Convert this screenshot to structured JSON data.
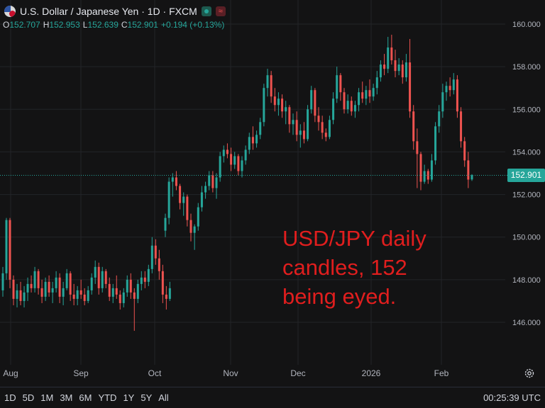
{
  "header": {
    "symbol_title": "U.S. Dollar / Japanese Yen · 1D · FXCM",
    "flag_icon": "usd-jpy-flag-icon",
    "status_icon": "market-open-icon",
    "wave_icon": "wave-icon",
    "wave_glyph": "≈"
  },
  "ohlc": {
    "o_label": "O",
    "o_value": "152.707",
    "h_label": "H",
    "h_value": "152.953",
    "l_label": "L",
    "l_value": "152.639",
    "c_label": "C",
    "c_value": "152.901",
    "change": "+0.194 (+0.13%)"
  },
  "annotation": "USD/JPY daily\ncandles, 152\nbeing eyed.",
  "price_tag": "152.901",
  "bottom_bar": {
    "timeframes": [
      "1D",
      "5D",
      "1M",
      "3M",
      "6M",
      "YTD",
      "1Y",
      "5Y",
      "All"
    ],
    "clock": "00:25:39 UTC",
    "settings_icon": "gear-icon"
  },
  "colors": {
    "up": "#26a69a",
    "down": "#ef5350",
    "annotation": "#e01e1e",
    "background": "#131314"
  },
  "chart_data": {
    "type": "candlestick",
    "title": "U.S. Dollar / Japanese Yen · 1D · FXCM",
    "x_ticks": [
      "Aug",
      "Sep",
      "Oct",
      "Nov",
      "Dec",
      "2026",
      "Feb"
    ],
    "y_ticks": [
      "160.000",
      "158.000",
      "156.000",
      "154.000",
      "152.000",
      "150.000",
      "148.000",
      "146.000"
    ],
    "ylim": [
      144.8,
      160.7
    ],
    "grid": true,
    "last_price": 152.901,
    "candles": [
      [
        147.5,
        148.6,
        147.2,
        148.3
      ],
      [
        148.3,
        150.9,
        148.0,
        150.8
      ],
      [
        150.8,
        150.9,
        147.6,
        148.0
      ],
      [
        148.0,
        148.2,
        146.8,
        147.1
      ],
      [
        147.1,
        147.8,
        146.7,
        147.5
      ],
      [
        147.5,
        147.9,
        146.8,
        147.0
      ],
      [
        147.0,
        147.7,
        146.7,
        147.4
      ],
      [
        147.4,
        148.1,
        147.0,
        147.8
      ],
      [
        147.8,
        148.2,
        147.4,
        147.6
      ],
      [
        147.6,
        148.6,
        147.4,
        148.4
      ],
      [
        148.4,
        148.5,
        147.3,
        147.6
      ],
      [
        147.6,
        148.0,
        146.9,
        147.2
      ],
      [
        147.2,
        148.1,
        147.0,
        147.9
      ],
      [
        147.9,
        148.2,
        147.2,
        147.4
      ],
      [
        147.4,
        147.9,
        146.9,
        147.6
      ],
      [
        147.6,
        148.4,
        147.4,
        148.1
      ],
      [
        148.1,
        148.3,
        146.9,
        147.2
      ],
      [
        147.2,
        147.9,
        146.8,
        147.6
      ],
      [
        147.6,
        148.5,
        147.5,
        148.3
      ],
      [
        148.3,
        148.4,
        147.0,
        147.3
      ],
      [
        147.3,
        147.8,
        146.8,
        147.1
      ],
      [
        147.1,
        147.7,
        146.8,
        147.5
      ],
      [
        147.5,
        148.0,
        147.1,
        147.3
      ],
      [
        147.3,
        147.6,
        146.8,
        147.0
      ],
      [
        147.0,
        147.7,
        146.9,
        147.5
      ],
      [
        147.5,
        148.3,
        147.3,
        148.1
      ],
      [
        148.1,
        148.9,
        147.8,
        148.6
      ],
      [
        148.6,
        148.8,
        147.3,
        147.6
      ],
      [
        147.6,
        148.6,
        147.4,
        148.4
      ],
      [
        148.4,
        148.5,
        147.6,
        147.8
      ],
      [
        147.8,
        148.1,
        147.0,
        147.2
      ],
      [
        147.2,
        147.8,
        146.9,
        147.6
      ],
      [
        147.6,
        148.2,
        147.1,
        147.3
      ],
      [
        147.3,
        147.5,
        146.6,
        146.9
      ],
      [
        146.9,
        147.6,
        146.7,
        147.4
      ],
      [
        147.4,
        148.2,
        147.2,
        148.0
      ],
      [
        148.0,
        148.3,
        147.1,
        147.4
      ],
      [
        147.4,
        147.6,
        145.6,
        147.1
      ],
      [
        147.1,
        148.0,
        146.9,
        147.8
      ],
      [
        147.8,
        148.4,
        147.5,
        148.1
      ],
      [
        148.1,
        148.4,
        147.6,
        147.9
      ],
      [
        147.9,
        148.7,
        147.7,
        148.5
      ],
      [
        148.5,
        150.0,
        148.3,
        149.6
      ],
      [
        149.6,
        149.9,
        148.7,
        149.0
      ],
      [
        149.0,
        149.4,
        148.0,
        148.4
      ],
      [
        148.4,
        148.7,
        146.9,
        147.3
      ],
      [
        147.3,
        147.7,
        146.6,
        147.1
      ],
      [
        147.1,
        147.9,
        147.0,
        147.6
      ],
      [
        150.3,
        151.1,
        150.0,
        150.9
      ],
      [
        150.9,
        152.8,
        150.6,
        152.6
      ],
      [
        152.6,
        153.0,
        151.9,
        152.8
      ],
      [
        152.8,
        153.1,
        152.2,
        152.4
      ],
      [
        152.4,
        152.5,
        151.3,
        151.6
      ],
      [
        151.6,
        152.1,
        151.0,
        151.9
      ],
      [
        151.9,
        152.0,
        150.5,
        150.8
      ],
      [
        150.8,
        151.1,
        149.8,
        150.2
      ],
      [
        150.2,
        150.6,
        149.4,
        150.5
      ],
      [
        150.5,
        151.6,
        150.3,
        151.4
      ],
      [
        151.4,
        152.4,
        151.2,
        152.1
      ],
      [
        152.1,
        152.6,
        151.8,
        152.4
      ],
      [
        152.4,
        153.1,
        152.2,
        152.9
      ],
      [
        152.9,
        153.1,
        152.1,
        152.3
      ],
      [
        152.3,
        153.0,
        151.8,
        152.8
      ],
      [
        152.8,
        154.0,
        152.6,
        153.8
      ],
      [
        153.8,
        154.3,
        153.5,
        154.1
      ],
      [
        154.1,
        154.4,
        153.7,
        153.9
      ],
      [
        153.9,
        154.2,
        153.1,
        153.4
      ],
      [
        153.4,
        154.0,
        153.2,
        153.8
      ],
      [
        153.8,
        153.9,
        152.9,
        153.1
      ],
      [
        153.1,
        153.8,
        152.8,
        153.6
      ],
      [
        153.6,
        154.3,
        153.4,
        154.1
      ],
      [
        154.1,
        154.9,
        153.9,
        154.7
      ],
      [
        154.7,
        155.2,
        154.1,
        154.4
      ],
      [
        154.4,
        155.0,
        154.2,
        154.8
      ],
      [
        154.8,
        155.6,
        154.6,
        155.4
      ],
      [
        155.4,
        157.2,
        155.2,
        157.0
      ],
      [
        157.0,
        157.9,
        156.6,
        157.6
      ],
      [
        157.6,
        157.8,
        156.3,
        156.6
      ],
      [
        156.6,
        157.0,
        155.9,
        156.2
      ],
      [
        156.2,
        156.8,
        155.7,
        156.5
      ],
      [
        156.5,
        156.7,
        155.6,
        155.9
      ],
      [
        155.9,
        156.4,
        155.3,
        156.1
      ],
      [
        156.1,
        156.2,
        154.9,
        155.3
      ],
      [
        155.3,
        155.8,
        154.8,
        155.5
      ],
      [
        155.5,
        155.9,
        154.5,
        154.8
      ],
      [
        154.8,
        155.3,
        154.2,
        155.0
      ],
      [
        155.0,
        155.4,
        154.4,
        154.6
      ],
      [
        154.6,
        156.2,
        154.5,
        156.0
      ],
      [
        156.0,
        157.1,
        155.8,
        156.9
      ],
      [
        156.9,
        157.0,
        155.4,
        155.7
      ],
      [
        155.7,
        156.1,
        155.0,
        155.4
      ],
      [
        155.4,
        155.7,
        154.6,
        154.9
      ],
      [
        154.9,
        155.1,
        154.5,
        154.7
      ],
      [
        154.7,
        155.7,
        154.6,
        155.5
      ],
      [
        155.5,
        156.8,
        155.3,
        156.5
      ],
      [
        156.5,
        158.0,
        156.3,
        157.6
      ],
      [
        157.6,
        157.7,
        156.4,
        156.8
      ],
      [
        156.8,
        157.0,
        155.8,
        156.0
      ],
      [
        156.0,
        156.7,
        155.8,
        156.4
      ],
      [
        156.4,
        156.6,
        155.7,
        155.9
      ],
      [
        155.9,
        156.4,
        155.6,
        156.2
      ],
      [
        156.2,
        157.0,
        155.9,
        156.8
      ],
      [
        156.8,
        157.3,
        156.3,
        156.5
      ],
      [
        156.5,
        157.1,
        156.2,
        156.9
      ],
      [
        156.9,
        157.4,
        156.3,
        156.6
      ],
      [
        156.6,
        157.2,
        156.4,
        157.0
      ],
      [
        157.0,
        157.8,
        156.7,
        157.5
      ],
      [
        157.5,
        158.3,
        157.3,
        158.1
      ],
      [
        158.1,
        158.6,
        157.6,
        157.9
      ],
      [
        157.9,
        159.4,
        157.7,
        158.9
      ],
      [
        158.9,
        159.5,
        158.1,
        158.3
      ],
      [
        158.3,
        158.8,
        157.5,
        157.8
      ],
      [
        157.8,
        158.4,
        157.6,
        158.1
      ],
      [
        158.1,
        158.3,
        157.2,
        157.5
      ],
      [
        157.5,
        158.6,
        157.3,
        158.2
      ],
      [
        158.2,
        159.3,
        155.6,
        155.9
      ],
      [
        155.9,
        156.2,
        154.1,
        154.5
      ],
      [
        154.5,
        155.1,
        152.3,
        153.9
      ],
      [
        153.9,
        154.0,
        152.2,
        152.6
      ],
      [
        152.6,
        153.4,
        152.5,
        153.1
      ],
      [
        153.1,
        153.2,
        152.5,
        152.7
      ],
      [
        152.7,
        153.9,
        152.6,
        153.6
      ],
      [
        153.6,
        155.4,
        153.4,
        155.2
      ],
      [
        155.2,
        156.2,
        154.9,
        155.9
      ],
      [
        155.9,
        157.2,
        155.6,
        156.8
      ],
      [
        156.8,
        157.3,
        156.4,
        157.1
      ],
      [
        157.1,
        157.5,
        156.6,
        156.9
      ],
      [
        156.9,
        157.7,
        156.7,
        157.4
      ],
      [
        157.4,
        157.6,
        155.6,
        155.9
      ],
      [
        155.9,
        156.1,
        154.2,
        154.5
      ],
      [
        154.5,
        154.7,
        153.3,
        153.6
      ],
      [
        153.6,
        154.0,
        152.3,
        152.7
      ],
      [
        152.707,
        152.953,
        152.639,
        152.901
      ]
    ]
  }
}
